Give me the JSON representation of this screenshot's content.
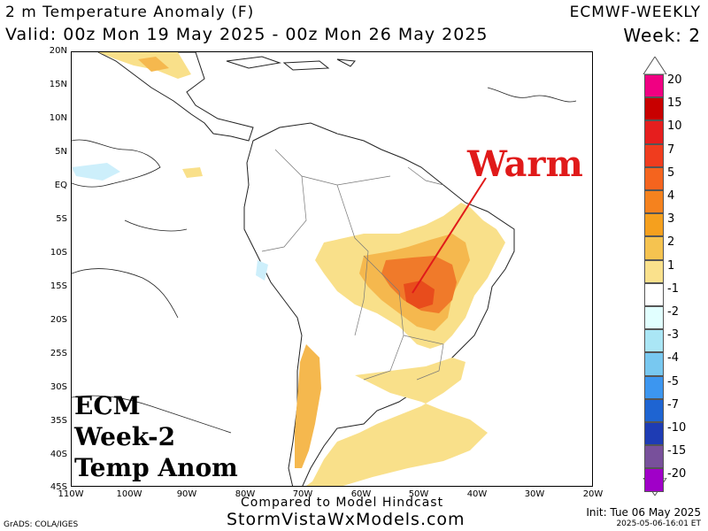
{
  "header": {
    "title": "2 m Temperature Anomaly (F)",
    "valid": "Valid: 00z Mon 19 May 2025 - 00z Mon 26 May 2025",
    "model": "ECMWF-WEEKLY",
    "week": "Week: 2"
  },
  "map": {
    "lat_labels": [
      "20N",
      "15N",
      "10N",
      "5N",
      "EQ",
      "5S",
      "10S",
      "15S",
      "20S",
      "25S",
      "30S",
      "35S",
      "40S",
      "45S"
    ],
    "lon_labels": [
      "110W",
      "100W",
      "90W",
      "80W",
      "70W",
      "60W",
      "50W",
      "40W",
      "30W",
      "20W"
    ],
    "annotation_warm": "Warm",
    "annotation_lines": [
      "ECM",
      "Week-2",
      "Temp Anom"
    ],
    "colors": {
      "warm_text": "#e01a1a",
      "anom_light": "#f9e08a",
      "anom_mid": "#f5b84e",
      "anom_strong": "#f07a2a",
      "anom_max": "#e84c1c",
      "cool": "#cdeffb"
    }
  },
  "colorbar": {
    "labels": [
      "20",
      "15",
      "10",
      "7",
      "5",
      "4",
      "3",
      "2",
      "1",
      "-1",
      "-2",
      "-3",
      "-4",
      "-5",
      "-7",
      "-10",
      "-15",
      "-20"
    ],
    "colors": [
      "#f00082",
      "#c80000",
      "#e61e1e",
      "#f03c1e",
      "#f5641e",
      "#f5821e",
      "#f5a01e",
      "#f5c350",
      "#fae18c",
      "#ffffff",
      "#e1ffff",
      "#aae6f5",
      "#78c8f0",
      "#3c96f0",
      "#1e64d2",
      "#1e3cb4",
      "#78509b",
      "#a000c8"
    ]
  },
  "footer": {
    "compared": "Compared to Model Hindcast",
    "site": "StormVistaWxModels.com",
    "grads": "GrADS: COLA/IGES",
    "init": "Init: Tue 06 May 2025",
    "stamp": "2025-05-06-16:01 ET"
  }
}
